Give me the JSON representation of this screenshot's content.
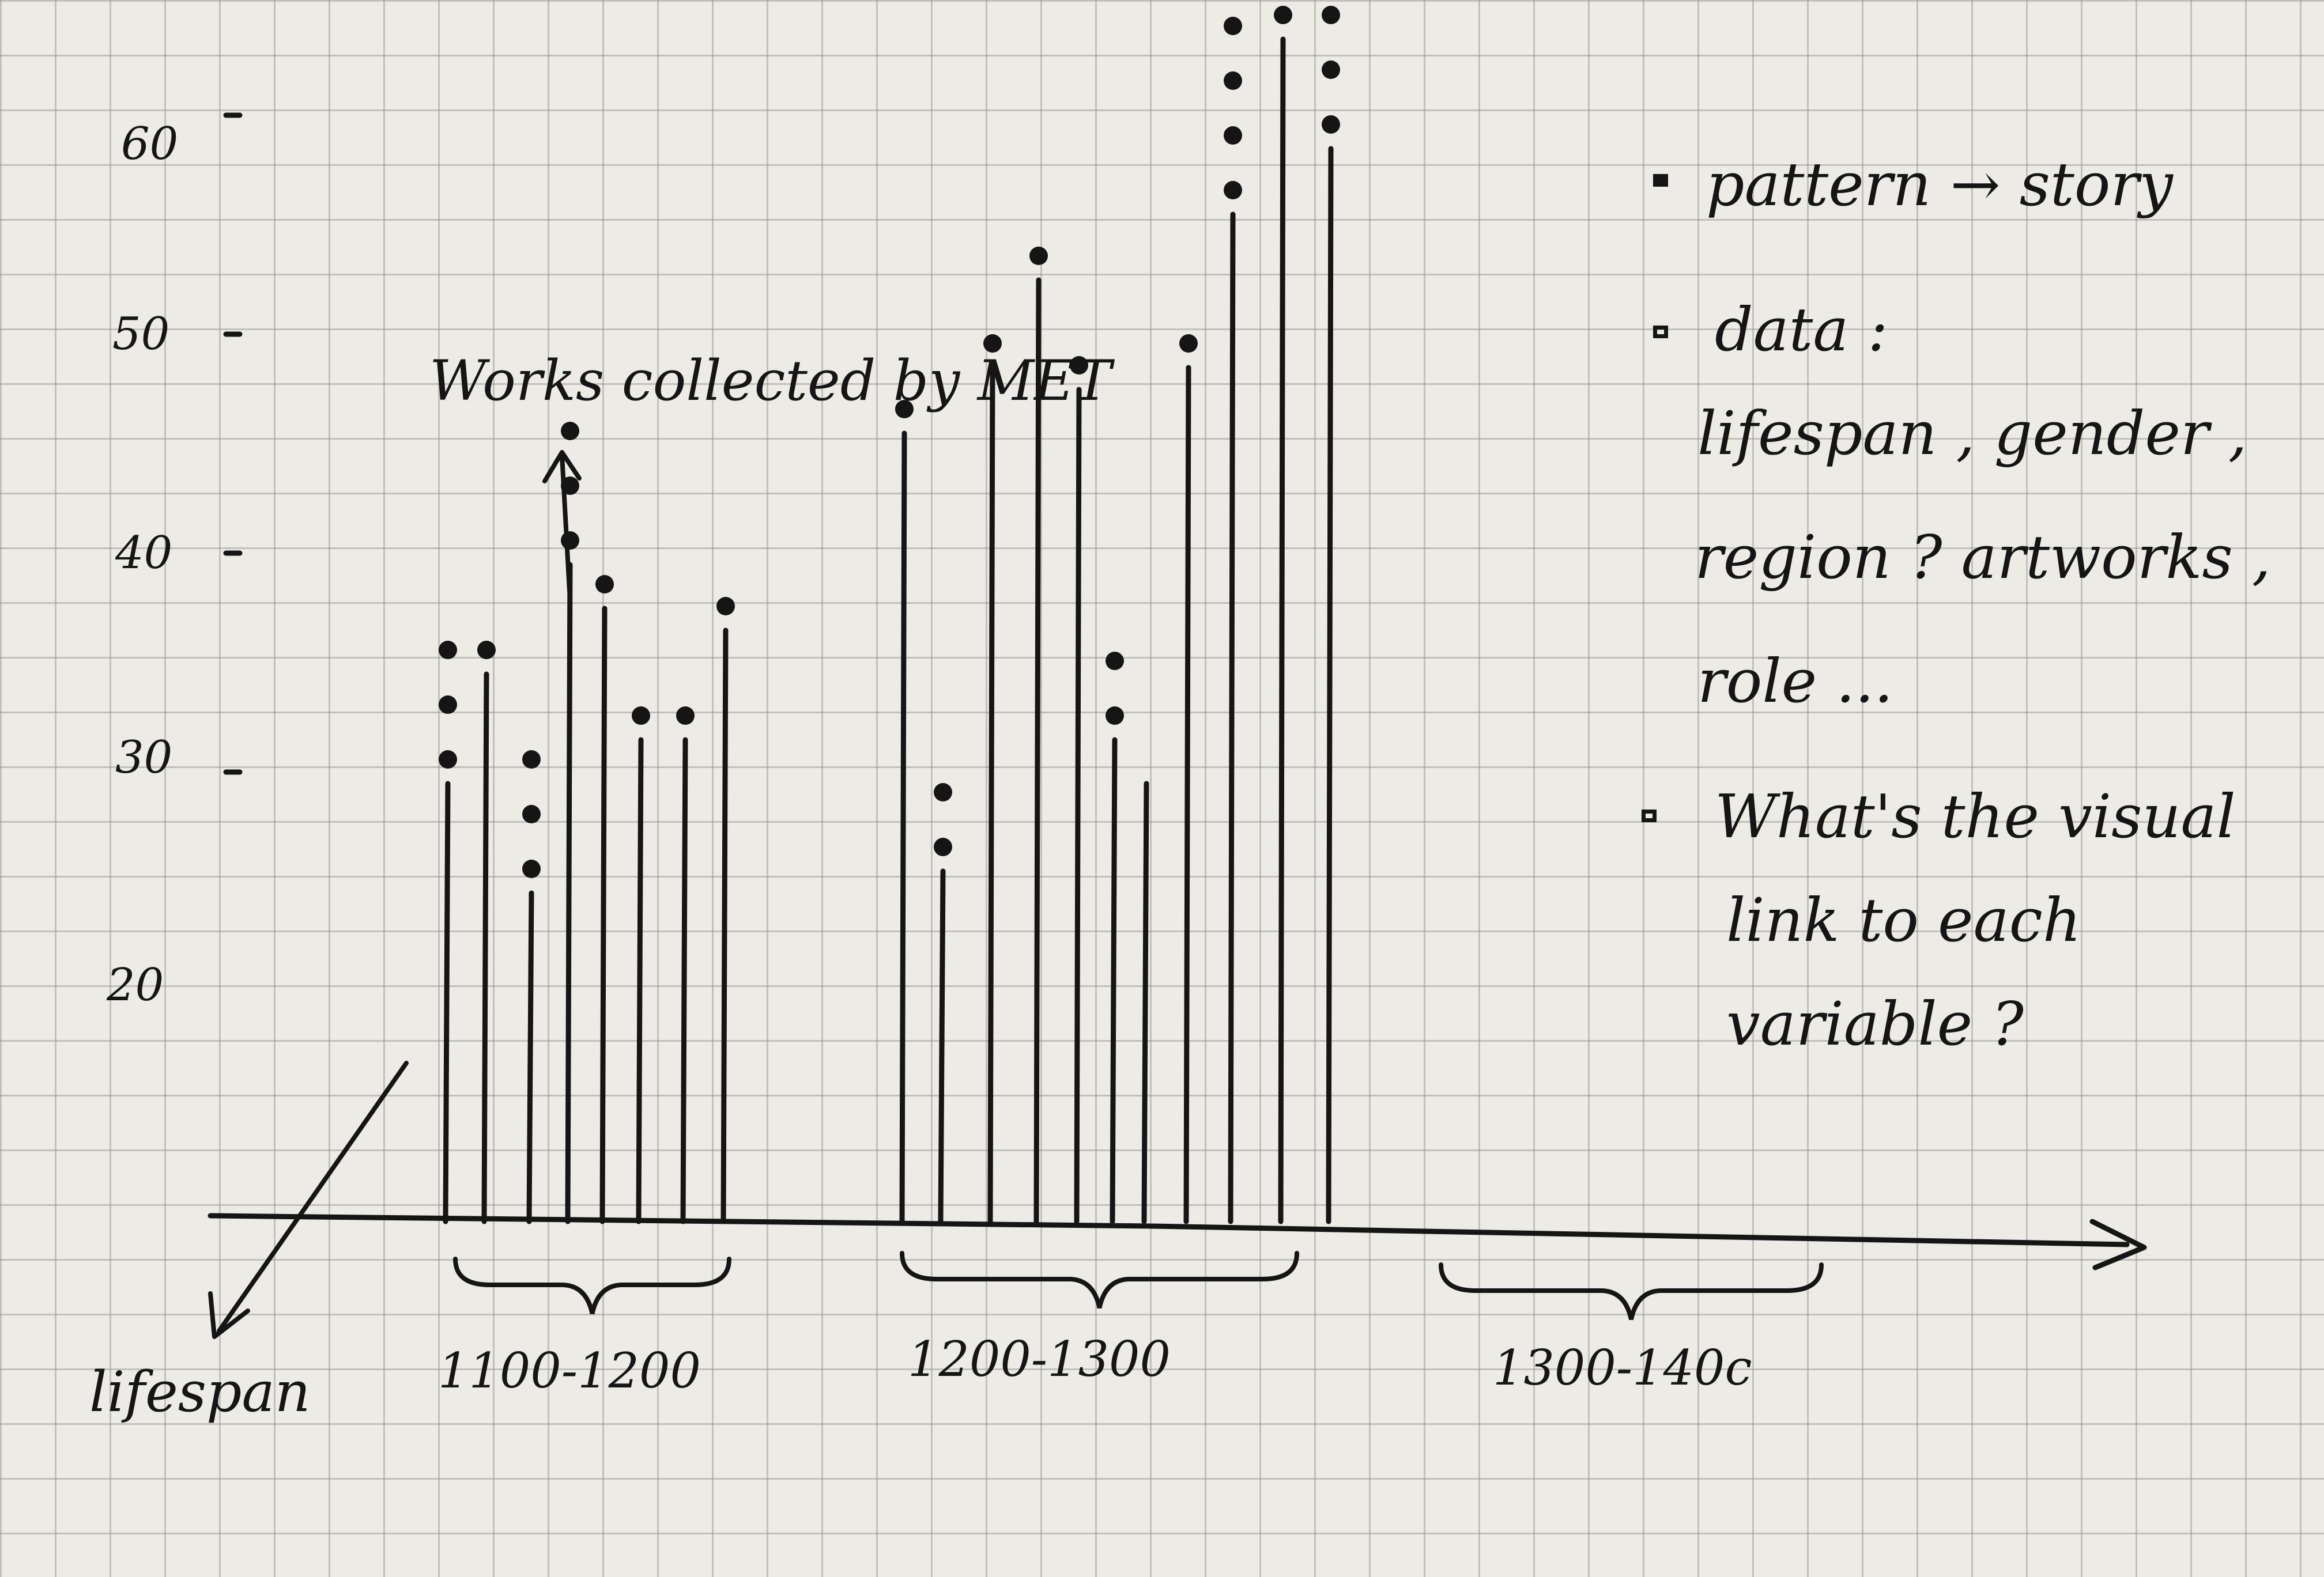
{
  "chart_data": {
    "type": "bar",
    "annotation": "Works collected by MET",
    "axis_label": "lifespan",
    "y_ticks": [
      "20",
      "30",
      "40",
      "50",
      "60"
    ],
    "ylim": [
      0,
      60
    ],
    "groups": [
      {
        "label": "1100-1200",
        "bars": [
          {
            "value": 20,
            "dots": 3
          },
          {
            "value": 25,
            "dots": 1
          },
          {
            "value": 15,
            "dots": 3
          },
          {
            "value": 30,
            "dots": 3
          },
          {
            "value": 28,
            "dots": 1
          },
          {
            "value": 22,
            "dots": 1
          },
          {
            "value": 22,
            "dots": 1
          },
          {
            "value": 27,
            "dots": 1
          }
        ]
      },
      {
        "label": "1200-1300",
        "bars": [
          {
            "value": 36,
            "dots": 1
          },
          {
            "value": 16,
            "dots": 2
          },
          {
            "value": 39,
            "dots": 1
          },
          {
            "value": 43,
            "dots": 1
          },
          {
            "value": 38,
            "dots": 1
          },
          {
            "value": 22,
            "dots": 2
          },
          {
            "value": 20,
            "dots": 0
          },
          {
            "value": 39,
            "dots": 1
          },
          {
            "value": 46,
            "dots": 4
          },
          {
            "value": 54,
            "dots": 1
          },
          {
            "value": 49,
            "dots": 4
          }
        ]
      },
      {
        "label": "1300-140c",
        "bars": []
      }
    ]
  },
  "notes": [
    {
      "bullet": "filled",
      "lines": [
        "pattern → story"
      ]
    },
    {
      "bullet": "hollow",
      "lines": [
        "data :",
        "lifespan , gender ,",
        "region ? artworks ,",
        "role ..."
      ]
    },
    {
      "bullet": "hollow",
      "lines": [
        "What's the visual",
        "link to each",
        "variable ?"
      ]
    }
  ],
  "colors": {
    "ink": "#151515",
    "paper": "#ecebe6",
    "grid": "#8c8c87"
  }
}
